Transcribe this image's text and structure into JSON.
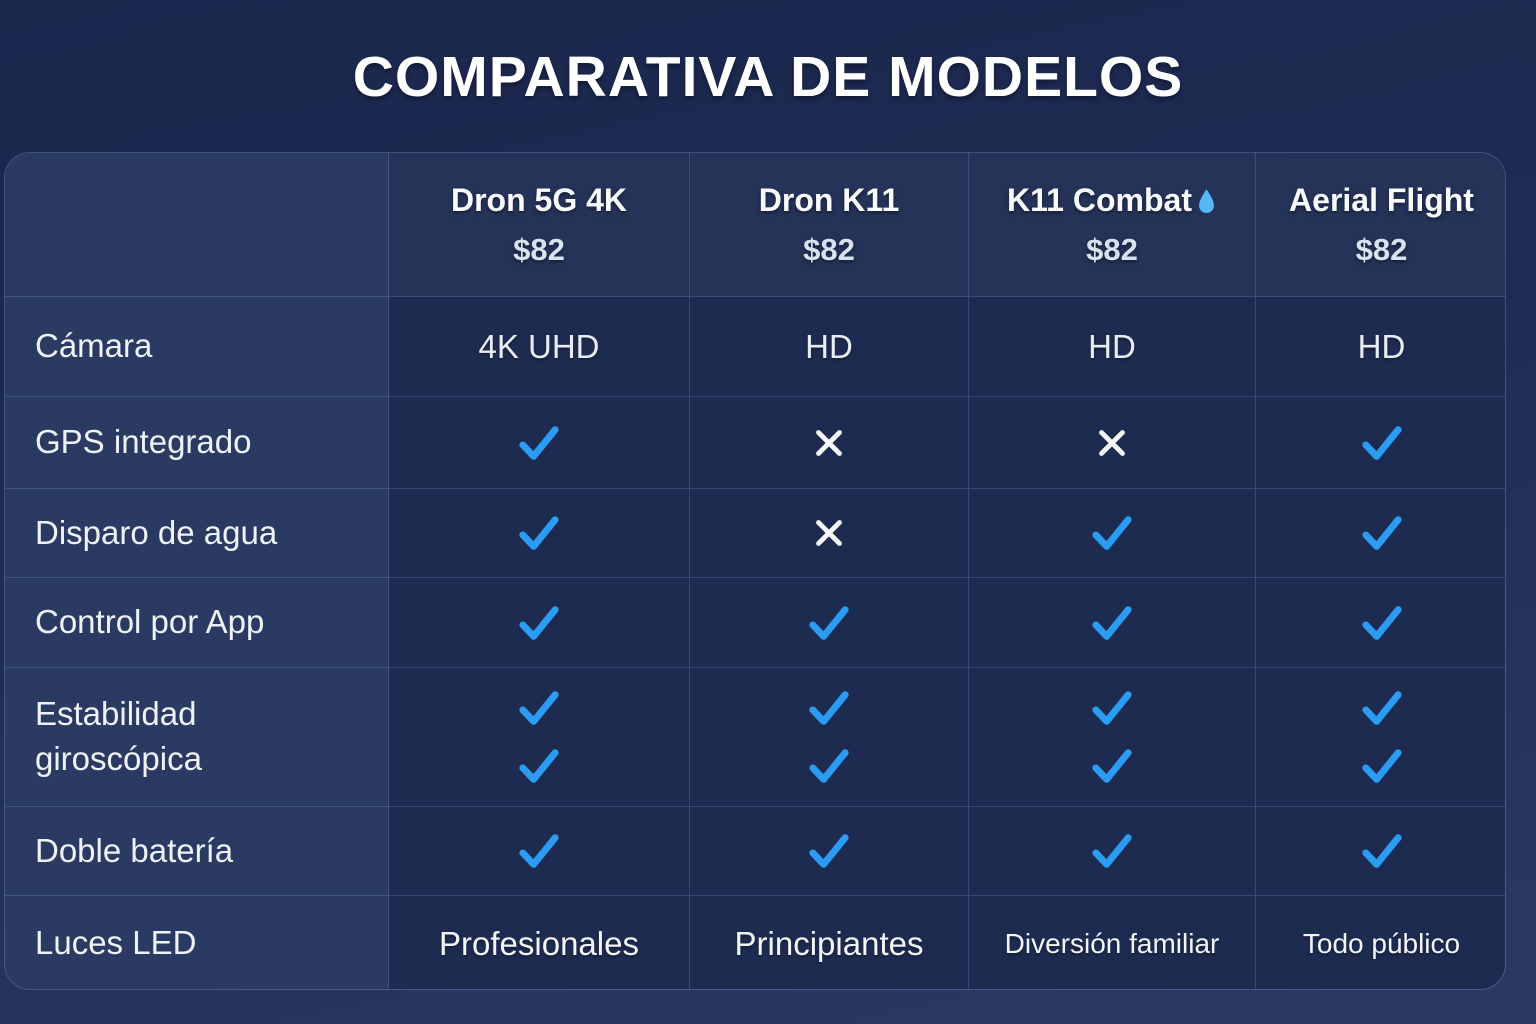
{
  "title": "COMPARATIVA DE MODELOS",
  "colors": {
    "check": "#2b9cf4",
    "cross": "#f4f6fa",
    "water_drop": "#55b7f3",
    "background": "#1e2b52",
    "label_column": "#2b3a62",
    "header_row": "#253359",
    "data_cell": "#1e2b50"
  },
  "table": {
    "products": [
      {
        "name": "Dron 5G 4K",
        "price": "$82",
        "drop_icon": false
      },
      {
        "name": "Dron K11",
        "price": "$82",
        "drop_icon": false
      },
      {
        "name": "K11 Combat",
        "price": "$82",
        "drop_icon": true
      },
      {
        "name": "Aerial Flight",
        "price": "$82",
        "drop_icon": false
      }
    ],
    "rows": [
      {
        "feature": "Cámara",
        "type": "text",
        "values": [
          "4K UHD",
          "HD",
          "HD",
          "HD"
        ]
      },
      {
        "feature": "GPS integrado",
        "type": "icon",
        "values": [
          "check",
          "cross",
          "cross",
          "check"
        ]
      },
      {
        "feature": "Disparo de agua",
        "type": "icon",
        "values": [
          "check",
          "cross",
          "check",
          "check"
        ]
      },
      {
        "feature": "Control por App",
        "type": "icon",
        "values": [
          "check",
          "check",
          "check",
          "check"
        ]
      },
      {
        "feature": "Estabilidad giroscópica",
        "type": "icon",
        "values": [
          "check-double",
          "check-double",
          "check-double",
          "check-double"
        ]
      },
      {
        "feature": "Doble batería",
        "type": "icon",
        "values": [
          "check",
          "check",
          "check",
          "check"
        ]
      },
      {
        "feature": "Luces LED",
        "type": "text",
        "values": [
          "Profesionales",
          "Principiantes",
          "Diversión familiar",
          "Todo público"
        ]
      }
    ]
  },
  "chart_data": {
    "type": "table",
    "title": "COMPARATIVA DE MODELOS",
    "columns": [
      "",
      "Dron 5G 4K $82",
      "Dron K11 $82",
      "K11 Combat💧 $82",
      "Aerial Flight $82"
    ],
    "rows": [
      [
        "Cámara",
        "4K UHD",
        "HD",
        "HD",
        "HD"
      ],
      [
        "GPS integrado",
        "yes",
        "no",
        "no",
        "yes"
      ],
      [
        "Disparo de agua",
        "yes",
        "no",
        "yes",
        "yes"
      ],
      [
        "Control por App",
        "yes",
        "yes",
        "yes",
        "yes"
      ],
      [
        "Estabilidad giroscópica",
        "yes (double check)",
        "yes (double check)",
        "yes (double check)",
        "yes (double check)"
      ],
      [
        "Doble batería",
        "yes",
        "yes",
        "yes",
        "yes"
      ],
      [
        "Luces LED",
        "Profesionales",
        "Principiantes",
        "Diversión familiar",
        "Todo público"
      ]
    ]
  }
}
